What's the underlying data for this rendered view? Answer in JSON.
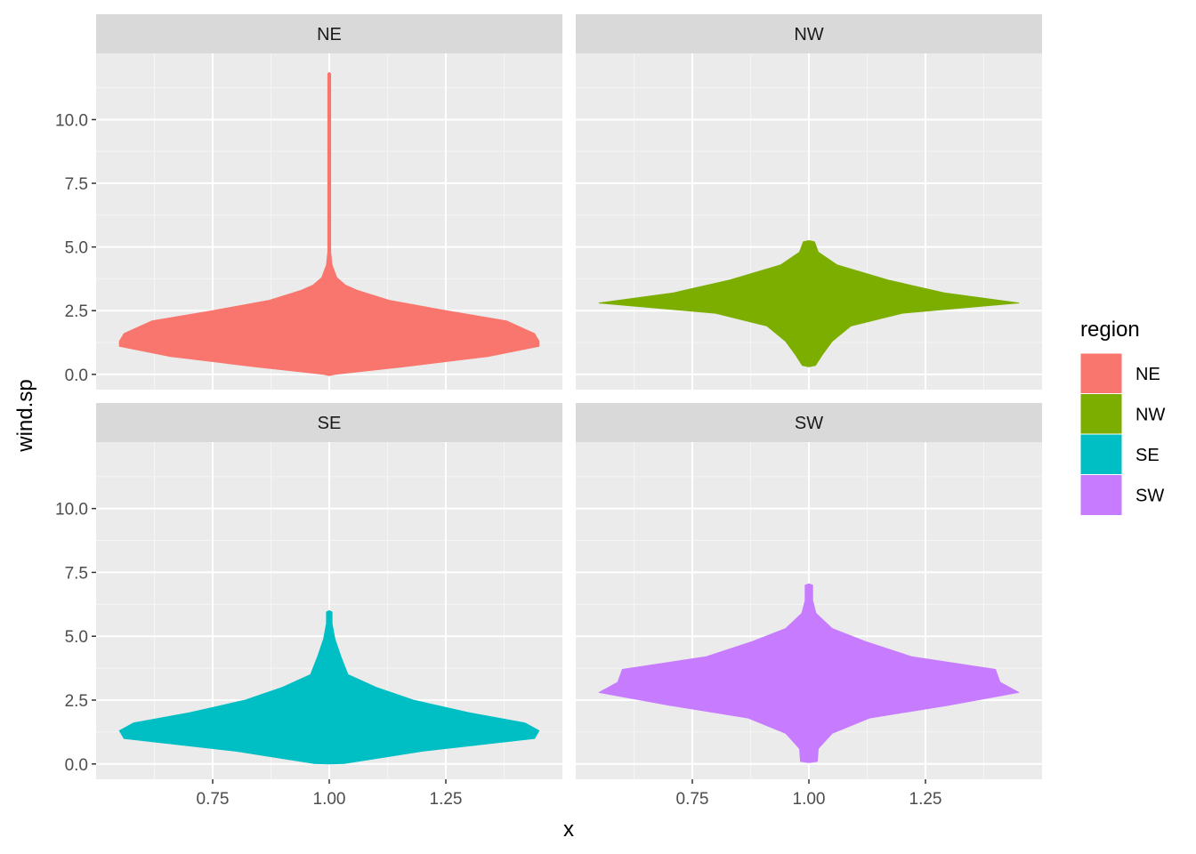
{
  "chart_data": {
    "type": "violin",
    "facet_variable": "region",
    "x_label": "x",
    "y_label": "wind.sp",
    "x_ticks": [
      "0.75",
      "1.00",
      "1.25"
    ],
    "x_tick_values": [
      0.75,
      1.0,
      1.25
    ],
    "y_ticks": [
      "0.0",
      "2.5",
      "5.0",
      "7.5",
      "10.0"
    ],
    "y_tick_values": [
      0,
      2.5,
      5.0,
      7.5,
      10.0
    ],
    "xlim": [
      0.5,
      1.5
    ],
    "ylim": [
      -0.6,
      12.6
    ],
    "grid": true,
    "legend": {
      "title": "region",
      "position": "right",
      "entries": [
        {
          "label": "NE",
          "color": "#F8766D"
        },
        {
          "label": "NW",
          "color": "#7CAE00"
        },
        {
          "label": "SE",
          "color": "#00BFC4"
        },
        {
          "label": "SW",
          "color": "#C77CFF"
        }
      ]
    },
    "panels": [
      {
        "strip": "NE",
        "color": "#F8766D",
        "x_center": 1.0,
        "profile_note": "half-width (x units) at wind.sp values",
        "profile": [
          [
            -0.05,
            0.0
          ],
          [
            0.0,
            0.012
          ],
          [
            0.3,
            0.16
          ],
          [
            0.7,
            0.34
          ],
          [
            1.1,
            0.45
          ],
          [
            1.3,
            0.45
          ],
          [
            1.6,
            0.44
          ],
          [
            2.1,
            0.38
          ],
          [
            2.5,
            0.25
          ],
          [
            2.9,
            0.13
          ],
          [
            3.3,
            0.06
          ],
          [
            3.5,
            0.035
          ],
          [
            3.8,
            0.016
          ],
          [
            4.3,
            0.006
          ],
          [
            4.8,
            0.003
          ],
          [
            6.0,
            0.003
          ],
          [
            11.8,
            0.003
          ],
          [
            11.85,
            0.0
          ]
        ]
      },
      {
        "strip": "NW",
        "color": "#7CAE00",
        "x_center": 1.0,
        "profile_note": "half-width (x units) at wind.sp values",
        "profile": [
          [
            0.3,
            0.0
          ],
          [
            0.35,
            0.014
          ],
          [
            0.8,
            0.03
          ],
          [
            1.3,
            0.05
          ],
          [
            1.9,
            0.09
          ],
          [
            2.4,
            0.2
          ],
          [
            2.8,
            0.45
          ],
          [
            3.2,
            0.29
          ],
          [
            3.7,
            0.17
          ],
          [
            4.3,
            0.06
          ],
          [
            4.8,
            0.02
          ],
          [
            5.2,
            0.012
          ],
          [
            5.25,
            0.0
          ]
        ]
      },
      {
        "strip": "SE",
        "color": "#00BFC4",
        "x_center": 1.0,
        "profile_note": "half-width (x units) at wind.sp values",
        "profile": [
          [
            0.0,
            0.0
          ],
          [
            0.02,
            0.032
          ],
          [
            0.5,
            0.2
          ],
          [
            1.0,
            0.44
          ],
          [
            1.3,
            0.45
          ],
          [
            1.6,
            0.42
          ],
          [
            2.0,
            0.3
          ],
          [
            2.5,
            0.18
          ],
          [
            3.0,
            0.1
          ],
          [
            3.5,
            0.04
          ],
          [
            4.2,
            0.025
          ],
          [
            4.9,
            0.012
          ],
          [
            5.5,
            0.006
          ],
          [
            5.95,
            0.006
          ],
          [
            6.0,
            0.0
          ]
        ]
      },
      {
        "strip": "SW",
        "color": "#C77CFF",
        "x_center": 1.0,
        "profile_note": "half-width (x units) at wind.sp values",
        "profile": [
          [
            0.05,
            0.0
          ],
          [
            0.1,
            0.018
          ],
          [
            0.6,
            0.02
          ],
          [
            1.2,
            0.05
          ],
          [
            1.8,
            0.13
          ],
          [
            2.3,
            0.3
          ],
          [
            2.8,
            0.45
          ],
          [
            3.2,
            0.41
          ],
          [
            3.7,
            0.4
          ],
          [
            4.2,
            0.22
          ],
          [
            4.8,
            0.12
          ],
          [
            5.3,
            0.05
          ],
          [
            5.9,
            0.015
          ],
          [
            6.4,
            0.008
          ],
          [
            7.0,
            0.008
          ],
          [
            7.05,
            0.0
          ]
        ]
      }
    ]
  }
}
